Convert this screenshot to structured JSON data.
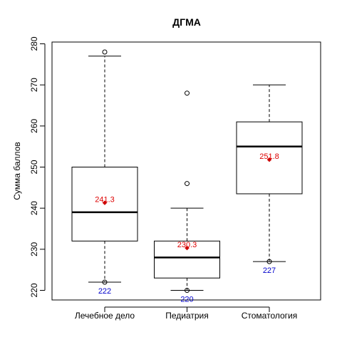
{
  "chart_data": {
    "type": "box",
    "title": "ДГМА",
    "ylabel": "Сумма баллов",
    "xlabel": "",
    "ylim": [
      217.5,
      281
    ],
    "yticks": [
      220,
      230,
      240,
      250,
      260,
      270,
      280
    ],
    "grid": false,
    "categories": [
      "Лечебное дело",
      "Педиатрия",
      "Стоматология"
    ],
    "boxes": [
      {
        "category": "Лечебное дело",
        "whisker_low": 222,
        "q1": 232,
        "median": 239,
        "q3": 250,
        "whisker_high": 277,
        "outliers": [
          278,
          222
        ],
        "mean": 241.3,
        "mean_label": "241.3",
        "min_label": "222"
      },
      {
        "category": "Педиатрия",
        "whisker_low": 220,
        "q1": 223,
        "median": 228,
        "q3": 232,
        "whisker_high": 240,
        "outliers": [
          268,
          246,
          220
        ],
        "mean": 230.3,
        "mean_label": "230.3",
        "min_label": "220"
      },
      {
        "category": "Стоматология",
        "whisker_low": 227,
        "q1": 243.5,
        "median": 255,
        "q3": 261,
        "whisker_high": 270,
        "outliers": [
          227
        ],
        "mean": 251.8,
        "mean_label": "251.8",
        "min_label": "227"
      }
    ],
    "colors": {
      "box": "#000000",
      "median": "#000000",
      "mean_point": "#cc0000",
      "mean_label": "#dd0000",
      "min_label": "#0000cc"
    }
  }
}
